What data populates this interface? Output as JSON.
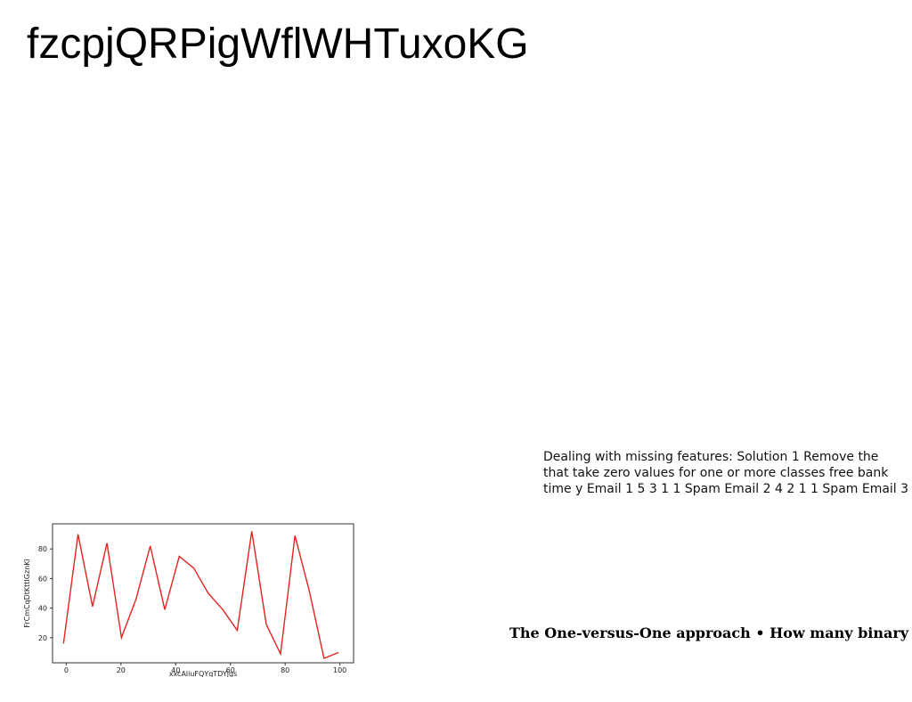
{
  "page": {
    "title": "fzcpjQRPigWflWHTuxoKG"
  },
  "text_block": {
    "lines": [
      "Dealing with missing features: Solution 1 Remove the",
      "that take zero values for one or more classes free bank",
      "time y Email 1 5 3 1 1 Spam Email 2 4 2 1 1 Spam Email 3"
    ]
  },
  "caption": {
    "text": "The One-versus-One approach • How many binary"
  },
  "chart_data": {
    "type": "line",
    "xlabel": "xxcAliuFQYqTDYjgs",
    "ylabel": "FrCmCqDtKttIGznKl",
    "xlim": [
      -5,
      105
    ],
    "ylim": [
      3,
      97
    ],
    "xticks": [
      0,
      20,
      40,
      60,
      80,
      100
    ],
    "yticks": [
      20,
      40,
      60,
      80
    ],
    "grid": false,
    "series": [
      {
        "color": "#e8231f",
        "x": [
          -1,
          4.3,
          9.6,
          14.9,
          20.2,
          25.5,
          30.7,
          36,
          41.3,
          46.6,
          51.9,
          57.2,
          62.5,
          67.8,
          73.1,
          78.3,
          83.6,
          88.9,
          94.2,
          99.5
        ],
        "y": [
          16,
          90,
          41,
          84,
          20,
          46,
          82,
          39,
          75,
          67,
          50,
          39,
          25,
          92,
          29,
          9,
          89,
          51,
          6,
          10
        ]
      }
    ]
  }
}
